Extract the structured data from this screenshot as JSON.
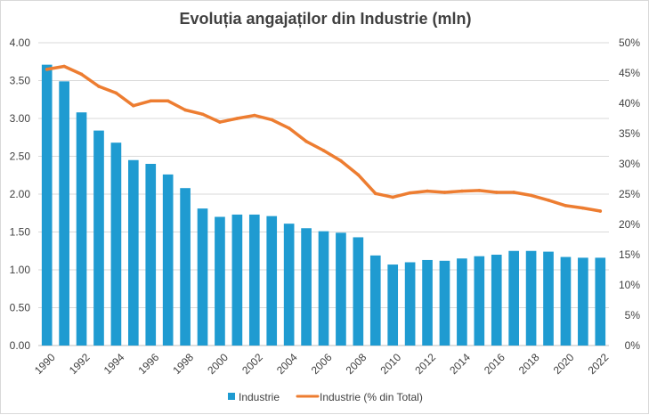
{
  "chart_data": {
    "type": "bar",
    "title": "Evoluția angajaților din Industrie (mln)",
    "xlabel": "",
    "ylabel": "",
    "x": [
      1990,
      1991,
      1992,
      1993,
      1994,
      1995,
      1996,
      1997,
      1998,
      1999,
      2000,
      2001,
      2002,
      2003,
      2004,
      2005,
      2006,
      2007,
      2008,
      2009,
      2010,
      2011,
      2012,
      2013,
      2014,
      2015,
      2016,
      2017,
      2018,
      2019,
      2020,
      2021,
      2022
    ],
    "x_tick_labels": [
      "1990",
      "1992",
      "1994",
      "1996",
      "1998",
      "2000",
      "2002",
      "2004",
      "2006",
      "2008",
      "2010",
      "2012",
      "2014",
      "2016",
      "2018",
      "2020",
      "2022"
    ],
    "y_left": {
      "min": 0,
      "max": 4.0,
      "ticks": [
        "0.00",
        "0.50",
        "1.00",
        "1.50",
        "2.00",
        "2.50",
        "3.00",
        "3.50",
        "4.00"
      ]
    },
    "y_right": {
      "min": 0,
      "max": 50,
      "ticks": [
        "0%",
        "5%",
        "10%",
        "15%",
        "20%",
        "25%",
        "30%",
        "35%",
        "40%",
        "45%",
        "50%"
      ]
    },
    "series": [
      {
        "name": "Industrie",
        "type": "bar",
        "axis": "left",
        "color": "#1f9bd1",
        "values": [
          3.71,
          3.49,
          3.08,
          2.84,
          2.68,
          2.45,
          2.4,
          2.26,
          2.08,
          1.81,
          1.7,
          1.73,
          1.73,
          1.71,
          1.61,
          1.55,
          1.51,
          1.49,
          1.43,
          1.19,
          1.07,
          1.1,
          1.13,
          1.12,
          1.15,
          1.18,
          1.2,
          1.25,
          1.25,
          1.24,
          1.17,
          1.16,
          1.16
        ]
      },
      {
        "name": "Industrie (% din Total)",
        "type": "line",
        "axis": "right",
        "color": "#ed7d31",
        "values": [
          45.6,
          46.1,
          44.8,
          42.8,
          41.7,
          39.6,
          40.4,
          40.4,
          38.9,
          38.2,
          36.9,
          37.5,
          38.0,
          37.3,
          35.9,
          33.7,
          32.2,
          30.5,
          28.2,
          25.1,
          24.5,
          25.2,
          25.5,
          25.3,
          25.5,
          25.6,
          25.3,
          25.3,
          24.8,
          24.0,
          23.1,
          22.7,
          22.2
        ]
      }
    ],
    "legend": {
      "position": "bottom"
    },
    "grid": true
  }
}
